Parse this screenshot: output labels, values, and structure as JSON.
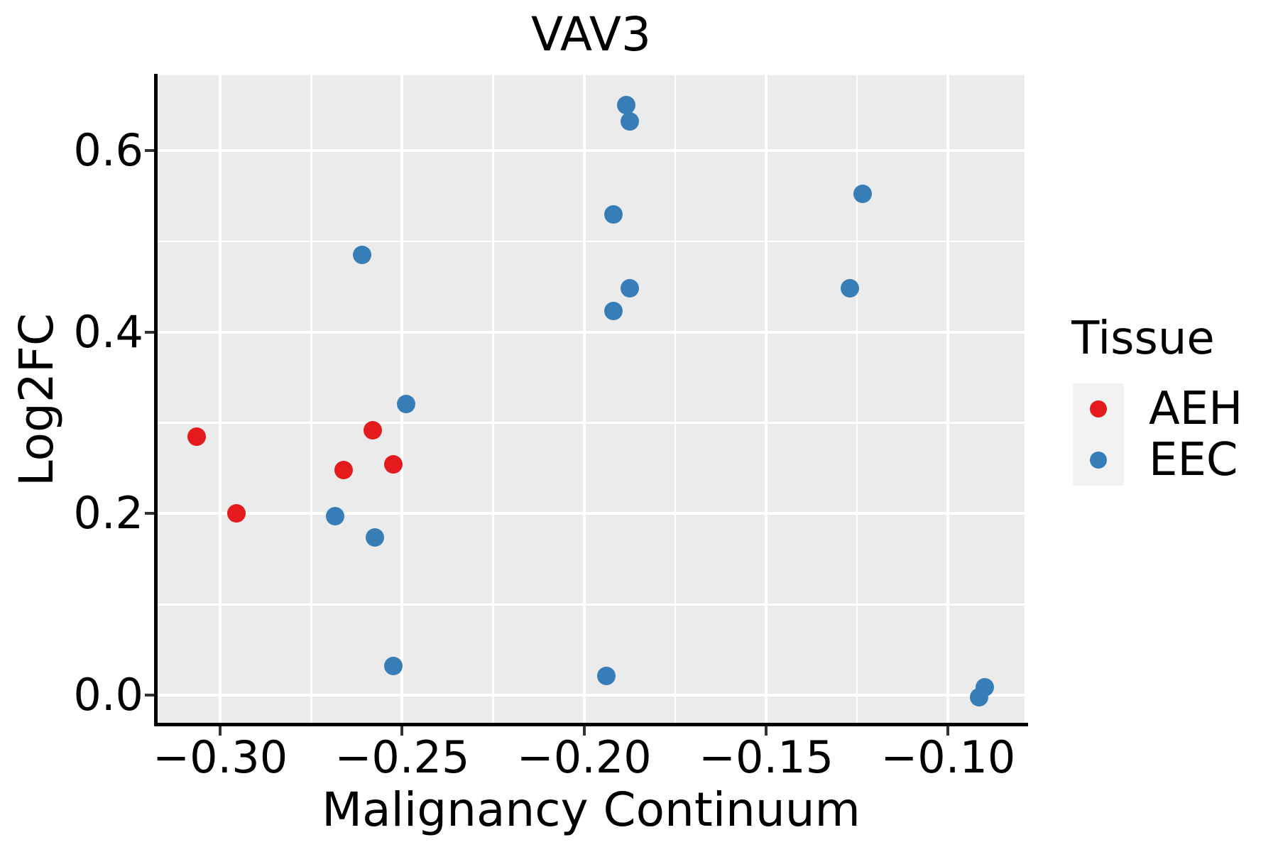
{
  "title": "VAV3",
  "axes": {
    "x": {
      "label": "Malignancy Continuum",
      "major_ticks": [
        -0.3,
        -0.25,
        -0.2,
        -0.15,
        -0.1
      ],
      "tick_labels": [
        "−0.30",
        "−0.25",
        "−0.20",
        "−0.15",
        "−0.10"
      ],
      "minor_ticks": [
        -0.275,
        -0.225,
        -0.175,
        -0.125
      ],
      "range": [
        -0.3172,
        -0.079
      ]
    },
    "y": {
      "label": "Log2FC",
      "major_ticks": [
        0.0,
        0.2,
        0.4,
        0.6
      ],
      "tick_labels": [
        "0.0",
        "0.2",
        "0.4",
        "0.6"
      ],
      "minor_ticks": [
        0.1,
        0.3,
        0.5
      ],
      "range": [
        -0.032,
        0.683
      ]
    }
  },
  "legend": {
    "title": "Tissue",
    "entries": [
      {
        "label": "AEH",
        "color": "#E41A1C"
      },
      {
        "label": "EEC",
        "color": "#377EB8"
      }
    ]
  },
  "colors": {
    "panel_background": "#EBEBEB",
    "gridline": "#FFFFFF",
    "spine": "#000000",
    "tick_mark": "#333333",
    "legend_key_background": "#F2F2F2",
    "aeh_red": "#E41A1C",
    "eec_blue": "#377EB8"
  },
  "chart_data": {
    "type": "scatter",
    "title": "VAV3",
    "xlabel": "Malignancy Continuum",
    "ylabel": "Log2FC",
    "xlim": [
      -0.3172,
      -0.079
    ],
    "ylim": [
      -0.032,
      0.683
    ],
    "grid": "major+minor white on gray",
    "legend_position": "right",
    "series": [
      {
        "name": "AEH",
        "color": "#E41A1C",
        "points": [
          [
            -0.3065,
            0.285
          ],
          [
            -0.2955,
            0.2
          ],
          [
            -0.266,
            0.248
          ],
          [
            -0.258,
            0.292
          ],
          [
            -0.2525,
            0.254
          ]
        ]
      },
      {
        "name": "EEC",
        "color": "#377EB8",
        "points": [
          [
            -0.261,
            0.485
          ],
          [
            -0.2685,
            0.197
          ],
          [
            -0.2575,
            0.174
          ],
          [
            -0.249,
            0.321
          ],
          [
            -0.2525,
            0.032
          ],
          [
            -0.1885,
            0.65
          ],
          [
            -0.1875,
            0.632
          ],
          [
            -0.192,
            0.53
          ],
          [
            -0.1875,
            0.448
          ],
          [
            -0.192,
            0.423
          ],
          [
            -0.194,
            0.021
          ],
          [
            -0.1235,
            0.552
          ],
          [
            -0.127,
            0.448
          ],
          [
            -0.09,
            0.009
          ],
          [
            -0.0915,
            -0.002
          ]
        ]
      }
    ]
  }
}
